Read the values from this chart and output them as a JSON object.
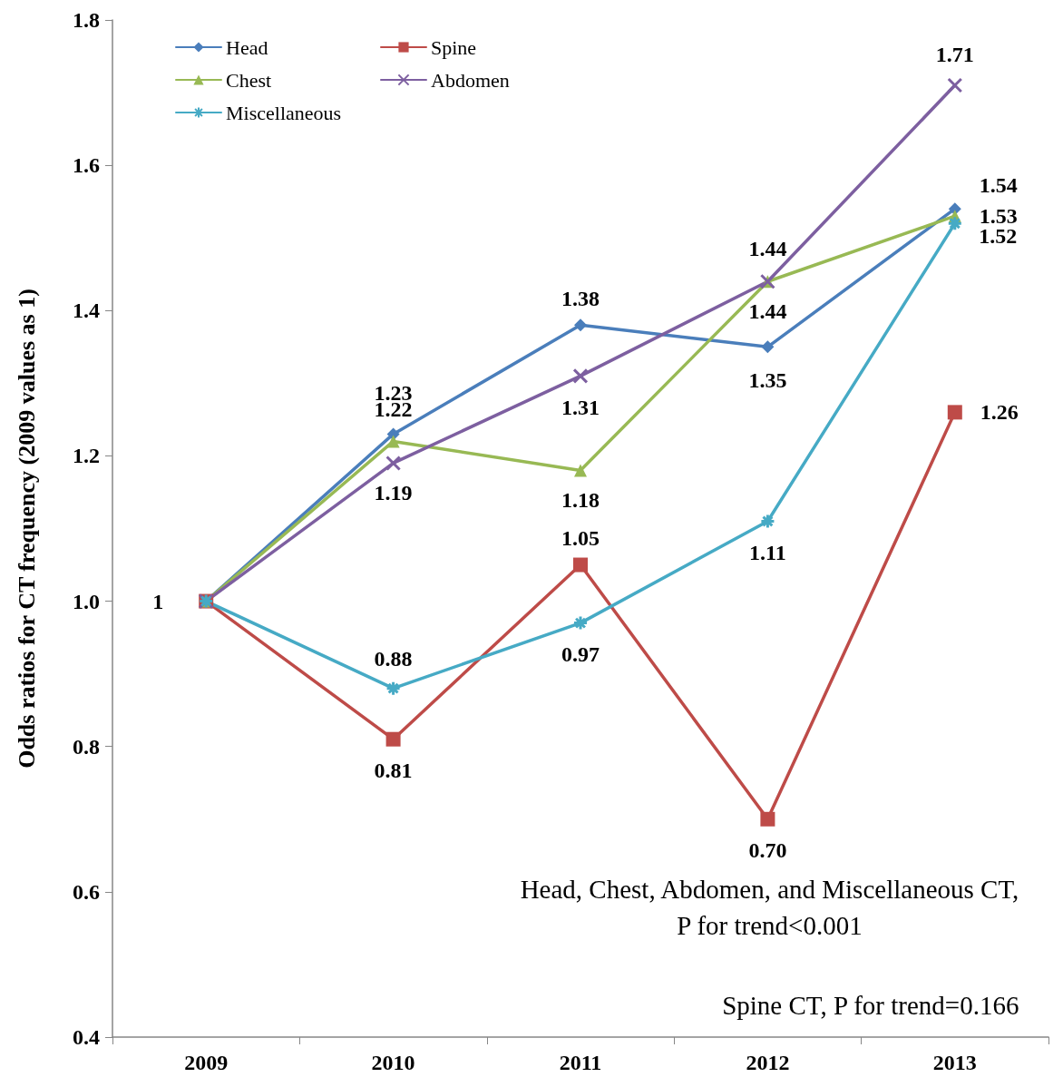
{
  "chart_data": {
    "type": "line",
    "ylabel": "Odds ratios for CT frequency (2009 values as 1)",
    "categories": [
      "2009",
      "2010",
      "2011",
      "2012",
      "2013"
    ],
    "series": [
      {
        "name": "Head",
        "color": "#4a7ebb",
        "marker": "diamond",
        "values": [
          1,
          1.23,
          1.38,
          1.35,
          1.54
        ],
        "value_labels": [
          "1",
          "1.23",
          "1.38",
          "1.35",
          "1.54"
        ]
      },
      {
        "name": "Spine",
        "color": "#be4b48",
        "marker": "square",
        "values": [
          1,
          0.81,
          1.05,
          0.7,
          1.26
        ],
        "value_labels": [
          null,
          "0.81",
          "1.05",
          "0.70",
          "1.26"
        ]
      },
      {
        "name": "Chest",
        "color": "#98b954",
        "marker": "triangle",
        "values": [
          1,
          1.22,
          1.18,
          1.44,
          1.53
        ],
        "value_labels": [
          null,
          "1.22",
          "1.18",
          "1.44",
          "1.53"
        ]
      },
      {
        "name": "Abdomen",
        "color": "#7d5fa0",
        "marker": "cross",
        "values": [
          1,
          1.19,
          1.31,
          1.44,
          1.71
        ],
        "value_labels": [
          null,
          "1.19",
          "1.31",
          "1.44",
          "1.71"
        ]
      },
      {
        "name": "Miscellaneous",
        "color": "#46aac5",
        "marker": "cross",
        "values": [
          1,
          0.88,
          0.97,
          1.11,
          1.52
        ],
        "value_labels": [
          null,
          "0.88",
          "0.97",
          "1.11",
          "1.52"
        ]
      }
    ],
    "ylim": [
      0.4,
      1.8
    ],
    "yticks": [
      0.4,
      0.6,
      0.8,
      {
        "value": 1,
        "label": "1.0"
      },
      1.2,
      1.4,
      1.6,
      1.8
    ],
    "grid": false,
    "legend": "top left",
    "line_style": "solid",
    "annotations": [
      "Head, Chest, Abdomen, and Miscellaneous CT,\nP for trend<0.001",
      "Spine CT, P for trend=0.166"
    ]
  }
}
